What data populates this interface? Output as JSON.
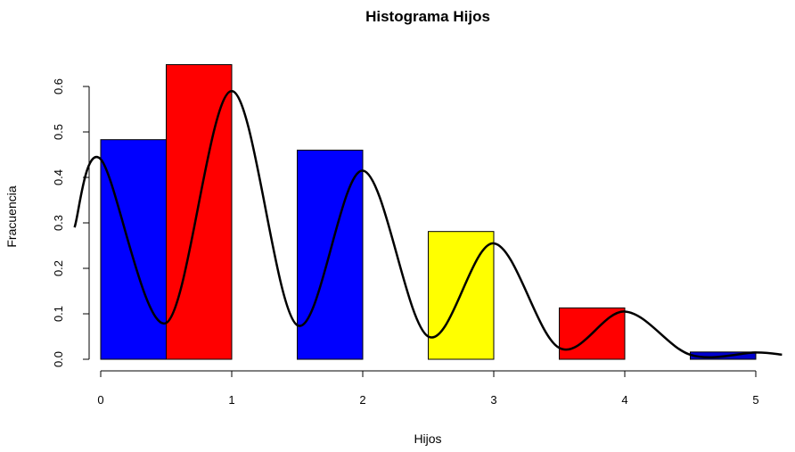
{
  "chart_data": {
    "type": "bar",
    "title": "Histograma Hijos",
    "xlabel": "Hijos",
    "ylabel": "Fracuencia",
    "xlim": [
      -0.2,
      5.2
    ],
    "ylim": [
      0,
      0.65
    ],
    "x_ticks": [
      0,
      1,
      2,
      3,
      4,
      5
    ],
    "y_ticks": [
      0.0,
      0.1,
      0.2,
      0.3,
      0.4,
      0.5,
      0.6
    ],
    "y_tick_labels": [
      "0.0",
      "0.1",
      "0.2",
      "0.3",
      "0.4",
      "0.5",
      "0.6"
    ],
    "bars": [
      {
        "x0": 0.0,
        "x1": 0.5,
        "value": 0.483,
        "color": "#0000FF"
      },
      {
        "x0": 0.5,
        "x1": 1.0,
        "value": 0.648,
        "color": "#FF0000"
      },
      {
        "x0": 1.5,
        "x1": 2.0,
        "value": 0.46,
        "color": "#0000FF"
      },
      {
        "x0": 2.5,
        "x1": 3.0,
        "value": 0.281,
        "color": "#FFFF00"
      },
      {
        "x0": 3.5,
        "x1": 4.0,
        "value": 0.113,
        "color": "#FF0000"
      },
      {
        "x0": 4.5,
        "x1": 5.0,
        "value": 0.016,
        "color": "#0000CD"
      }
    ],
    "density_curve": {
      "x": [
        -0.2,
        0.0,
        0.5,
        1.0,
        1.5,
        2.0,
        2.5,
        3.0,
        3.5,
        4.0,
        4.5,
        5.0,
        5.2
      ],
      "y": [
        0.29,
        0.44,
        0.08,
        0.59,
        0.075,
        0.415,
        0.05,
        0.255,
        0.025,
        0.105,
        0.01,
        0.015,
        0.01
      ]
    }
  }
}
